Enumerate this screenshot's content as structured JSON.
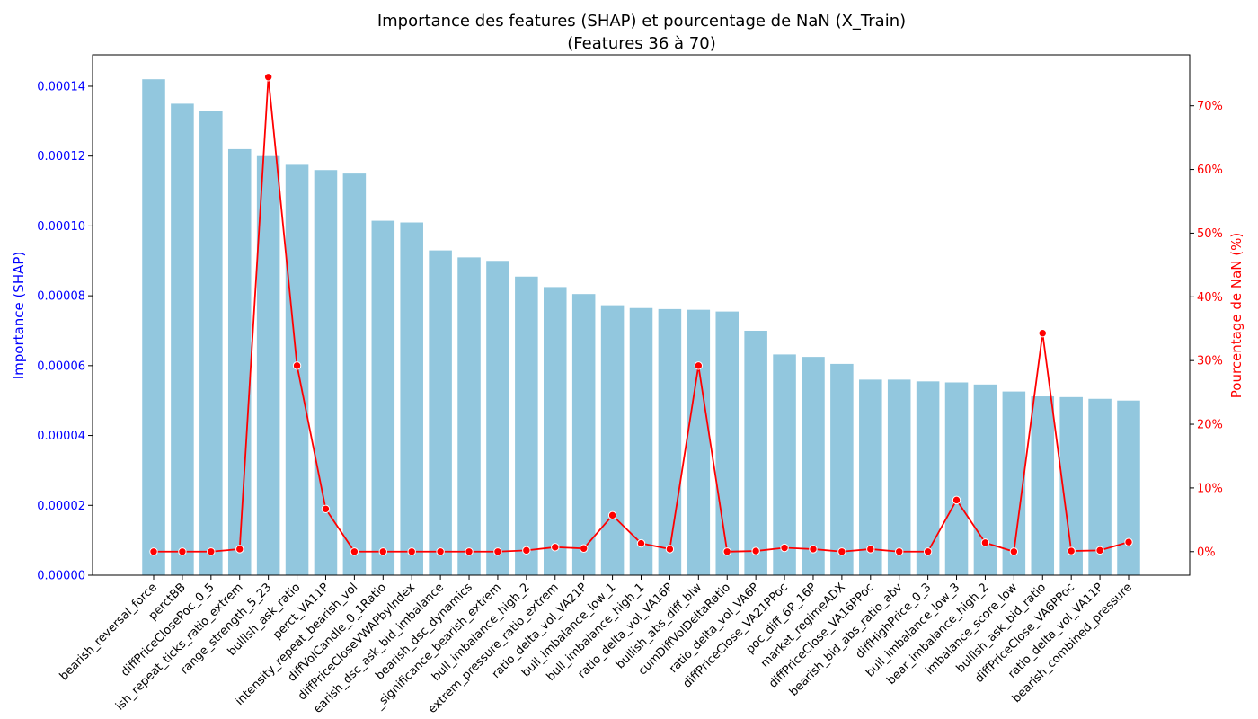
{
  "chart_data": {
    "type": "bar",
    "title": "Importance des features (SHAP) et pourcentage de NaN (X_Train)",
    "subtitle": "(Features 36 à 70)",
    "ylabel_left": "Importance (SHAP)",
    "ylabel_right": "Pourcentage de NaN (%)",
    "ylim_left": [
      0,
      0.000149
    ],
    "ylim_right": [
      -3.7,
      78
    ],
    "left_ticks": [
      "0.00000",
      "0.00002",
      "0.00004",
      "0.00006",
      "0.00008",
      "0.00010",
      "0.00012",
      "0.00014"
    ],
    "right_ticks": [
      "0%",
      "10%",
      "20%",
      "30%",
      "40%",
      "50%",
      "60%",
      "70%"
    ],
    "categories": [
      "bearish_reversal_force",
      "perctBB",
      "diffPriceClosePoc_0_5",
      "ish_repeat_ticks_ratio_extrem",
      "range_strength_5_23",
      "bullish_ask_ratio",
      "perct_VA11P",
      "intensity_repeat_bearish_vol",
      "diffVolCandle_0_1Ratio",
      "diffPriceCloseVWAPbyIndex",
      "earish_dsc_ask_bid_imbalance",
      "bearish_dsc_dynamics",
      "_significance_bearish_extrem",
      "bull_imbalance_high_2",
      "extrem_pressure_ratio_extrem",
      "ratio_delta_vol_VA21P",
      "bull_imbalance_low_1",
      "bull_imbalance_high_1",
      "ratio_delta_vol_VA16P",
      "bullish_abs_diff_blw",
      "cumDiffVolDeltaRatio",
      "ratio_delta_vol_VA6P",
      "diffPriceClose_VA21PPoc",
      "poc_diff_6P_16P",
      "market_regimeADX",
      "diffPriceClose_VA16PPoc",
      "bearish_bid_abs_ratio_abv",
      "diffHighPrice_0_3",
      "bull_imbalance_low_3",
      "bear_imbalance_high_2",
      "imbalance_score_low",
      "bullish_ask_bid_ratio",
      "diffPriceClose_VA6PPoc",
      "ratio_delta_vol_VA11P",
      "bearish_combined_pressure"
    ],
    "series": [
      {
        "axis": "left",
        "kind": "bar",
        "color": "#92c7de",
        "values": [
          0.000142,
          0.000135,
          0.000133,
          0.000122,
          0.00012,
          0.0001175,
          0.000116,
          0.000115,
          0.0001015,
          0.000101,
          9.3e-05,
          9.1e-05,
          9e-05,
          8.55e-05,
          8.25e-05,
          8.05e-05,
          7.73e-05,
          7.65e-05,
          7.62e-05,
          7.6e-05,
          7.55e-05,
          7e-05,
          6.32e-05,
          6.25e-05,
          6.05e-05,
          5.6e-05,
          5.6e-05,
          5.55e-05,
          5.52e-05,
          5.46e-05,
          5.26e-05,
          5.12e-05,
          5.1e-05,
          5.05e-05,
          5e-05
        ]
      },
      {
        "axis": "right",
        "kind": "line",
        "color": "#ff0000",
        "values": [
          0,
          0,
          0,
          0.4,
          74.5,
          29.2,
          6.7,
          0,
          0,
          0,
          0,
          0,
          0,
          0.2,
          0.7,
          0.5,
          5.7,
          1.3,
          0.4,
          29.2,
          0,
          0.1,
          0.6,
          0.4,
          0,
          0.4,
          0,
          0,
          8.1,
          1.4,
          0,
          34.3,
          0.1,
          0.2,
          1.5
        ]
      }
    ],
    "colors": {
      "left_axis": "#0000ff",
      "right_axis": "#ff0000"
    }
  }
}
